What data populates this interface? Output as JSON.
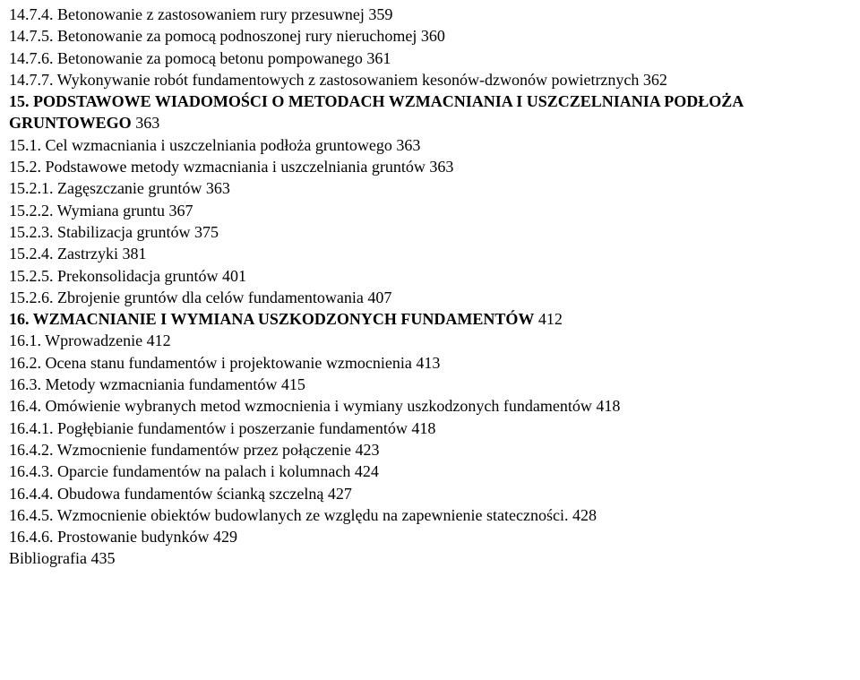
{
  "lines": [
    {
      "text": "14.7.4. Betonowanie z zastosowaniem rury przesuwnej  359",
      "bold": false
    },
    {
      "text": "14.7.5. Betonowanie za pomocą podnoszonej rury nieruchomej  360",
      "bold": false
    },
    {
      "text": "14.7.6. Betonowanie za pomocą betonu pompowanego  361",
      "bold": false
    },
    {
      "text": "14.7.7. Wykonywanie robót fundamentowych z zastosowaniem kesonów-dzwonów powietrznych  362",
      "bold": false
    },
    {
      "parts": [
        {
          "text": "15. PODSTAWOWE WIADOMOŚCI O METODACH WZMACNIANIA I USZCZELNIANIA PODŁOŻA GRUNTOWEGO",
          "bold": true
        },
        {
          "text": " 363",
          "bold": false
        }
      ]
    },
    {
      "text": "15.1. Cel wzmacniania i uszczelniania podłoża gruntowego  363",
      "bold": false
    },
    {
      "text": "15.2. Podstawowe metody wzmacniania i uszczelniania gruntów  363",
      "bold": false
    },
    {
      "text": "15.2.1. Zagęszczanie gruntów  363",
      "bold": false
    },
    {
      "text": "15.2.2. Wymiana gruntu  367",
      "bold": false
    },
    {
      "text": "15.2.3. Stabilizacja gruntów  375",
      "bold": false
    },
    {
      "text": "15.2.4. Zastrzyki  381",
      "bold": false
    },
    {
      "text": "15.2.5. Prekonsolidacja gruntów  401",
      "bold": false
    },
    {
      "text": "15.2.6. Zbrojenie gruntów dla celów fundamentowania  407",
      "bold": false
    },
    {
      "parts": [
        {
          "text": "16. WZMACNIANIE I WYMIANA USZKODZONYCH FUNDAMENTÓW",
          "bold": true
        },
        {
          "text": "  412",
          "bold": false
        }
      ]
    },
    {
      "text": "16.1. Wprowadzenie   412",
      "bold": false
    },
    {
      "text": "16.2. Ocena stanu fundamentów i projektowanie wzmocnienia  413",
      "bold": false
    },
    {
      "text": "16.3. Metody wzmacniania fundamentów  415",
      "bold": false
    },
    {
      "text": "16.4. Omówienie wybranych metod wzmocnienia i wymiany uszkodzonych fundamentów     418",
      "bold": false
    },
    {
      "text": "16.4.1. Pogłębianie fundamentów i poszerzanie fundamentów  418",
      "bold": false
    },
    {
      "text": "16.4.2. Wzmocnienie fundamentów przez połączenie  423",
      "bold": false
    },
    {
      "text": "16.4.3. Oparcie fundamentów na palach i kolumnach  424",
      "bold": false
    },
    {
      "text": "16.4.4. Obudowa fundamentów ścianką szczelną  427",
      "bold": false
    },
    {
      "text": "16.4.5. Wzmocnienie obiektów budowlanych ze względu na zapewnienie stateczności.  428",
      "bold": false
    },
    {
      "text": "16.4.6. Prostowanie budynków  429",
      "bold": false
    },
    {
      "text": "Bibliografia    435",
      "bold": false
    }
  ]
}
